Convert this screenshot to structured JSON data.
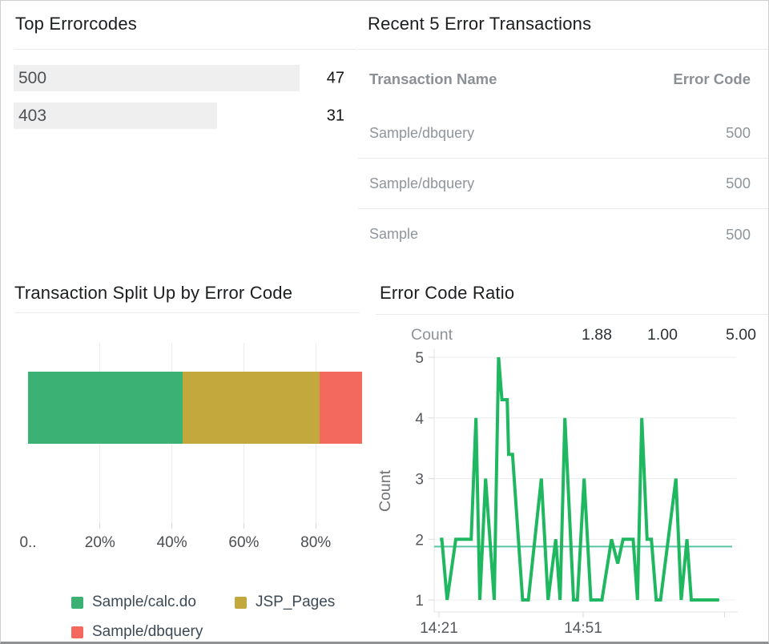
{
  "chart_data": [
    {
      "type": "bar",
      "subtype": "horizontal-list",
      "title": "Top Errorcodes",
      "categories": [
        "500",
        "403"
      ],
      "values": [
        47,
        31
      ],
      "bar_color": "#efefef"
    },
    {
      "type": "table",
      "title": "Recent 5 Error Transactions",
      "columns": [
        "Transaction Name",
        "Error Code"
      ],
      "rows": [
        [
          "Sample/dbquery",
          "500"
        ],
        [
          "Sample/dbquery",
          "500"
        ],
        [
          "Sample",
          "500"
        ]
      ]
    },
    {
      "type": "bar",
      "subtype": "stacked-horizontal",
      "title": "Transaction Split Up by Error Code",
      "x_ticks": [
        {
          "label": "0..",
          "pct": 0
        },
        {
          "label": "20%",
          "pct": 20
        },
        {
          "label": "40%",
          "pct": 40
        },
        {
          "label": "60%",
          "pct": 60
        },
        {
          "label": "80%",
          "pct": 80
        }
      ],
      "xlim_pct": [
        0,
        95
      ],
      "grid": true,
      "series": [
        {
          "name": "Sample/calc.do",
          "pct": 43.0,
          "color": "#3bb273"
        },
        {
          "name": "JSP_Pages",
          "pct": 38.1,
          "color": "#c3a93d"
        },
        {
          "name": "Sample/dbquery",
          "pct": 11.8,
          "color": "#f4695e"
        }
      ]
    },
    {
      "type": "line",
      "title": "Error Code Ratio",
      "ylabel": "Count",
      "stats": {
        "label": "Count",
        "avg": "1.88",
        "min": "1.00",
        "max": "5.00"
      },
      "y_ticks": [
        1,
        2,
        3,
        4,
        5
      ],
      "ylim": [
        1,
        5
      ],
      "x_domain_min": [
        0,
        62
      ],
      "x_tick_labels": [
        {
          "label": "14:21",
          "min": 1
        },
        {
          "label": "14:51",
          "min": 31
        }
      ],
      "unlabeled_tick_min": 60.4,
      "grid": true,
      "average_line": {
        "value": 1.88,
        "color": "#57c2a5"
      },
      "series": [
        {
          "name": "Count",
          "color": "#1fb860",
          "points": [
            [
              1.2,
              2
            ],
            [
              1.6,
              2
            ],
            [
              2.7,
              1
            ],
            [
              4.5,
              2
            ],
            [
              7.7,
              2
            ],
            [
              8.7,
              4
            ],
            [
              9.5,
              1
            ],
            [
              10.7,
              3
            ],
            [
              12.5,
              1
            ],
            [
              13.4,
              5
            ],
            [
              14.1,
              4.3
            ],
            [
              15.2,
              4.3
            ],
            [
              15.5,
              3.4
            ],
            [
              16.3,
              3.4
            ],
            [
              18.4,
              1
            ],
            [
              19.6,
              1
            ],
            [
              22.3,
              3
            ],
            [
              23.7,
              1
            ],
            [
              25.3,
              2
            ],
            [
              26.2,
              1
            ],
            [
              27.2,
              4
            ],
            [
              29,
              1
            ],
            [
              29.8,
              1
            ],
            [
              31.2,
              3
            ],
            [
              32.6,
              1
            ],
            [
              34.9,
              1
            ],
            [
              36.9,
              2
            ],
            [
              38.2,
              1.6
            ],
            [
              39.3,
              2
            ],
            [
              41.4,
              2
            ],
            [
              42.3,
              1
            ],
            [
              43.2,
              4
            ],
            [
              44.3,
              2
            ],
            [
              45.2,
              2
            ],
            [
              46.2,
              1
            ],
            [
              47.1,
              1
            ],
            [
              50.3,
              3
            ],
            [
              51.4,
              1
            ],
            [
              52.6,
              2
            ],
            [
              53.5,
              1
            ],
            [
              59.3,
              1
            ]
          ]
        }
      ]
    }
  ]
}
